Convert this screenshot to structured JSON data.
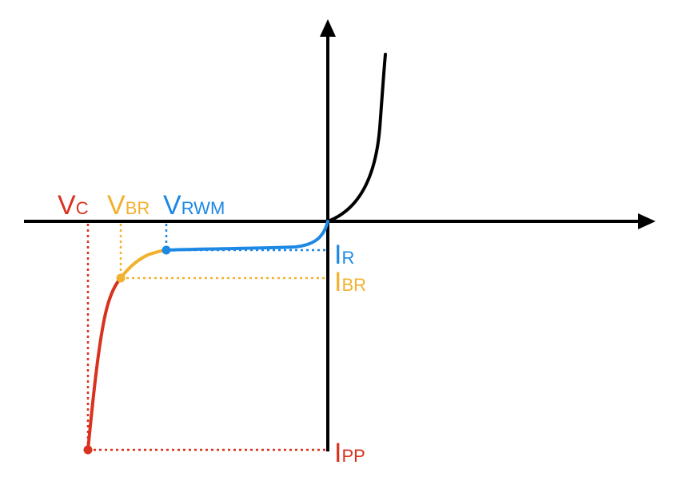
{
  "diagram": {
    "type": "iv-characteristic",
    "colors": {
      "axis": "#000000",
      "forward_curve": "#000000",
      "vc": "#d9321f",
      "vbr": "#f2b12f",
      "vrwm": "#1e88e5"
    },
    "labels": {
      "vc": {
        "main": "V",
        "sub": "C"
      },
      "vbr": {
        "main": "V",
        "sub": "BR"
      },
      "vrwm": {
        "main": "V",
        "sub": "RWM"
      },
      "ir": {
        "main": "I",
        "sub": "R"
      },
      "ibr": {
        "main": "I",
        "sub": "BR"
      },
      "ipp": {
        "main": "I",
        "sub": "PP"
      }
    }
  }
}
